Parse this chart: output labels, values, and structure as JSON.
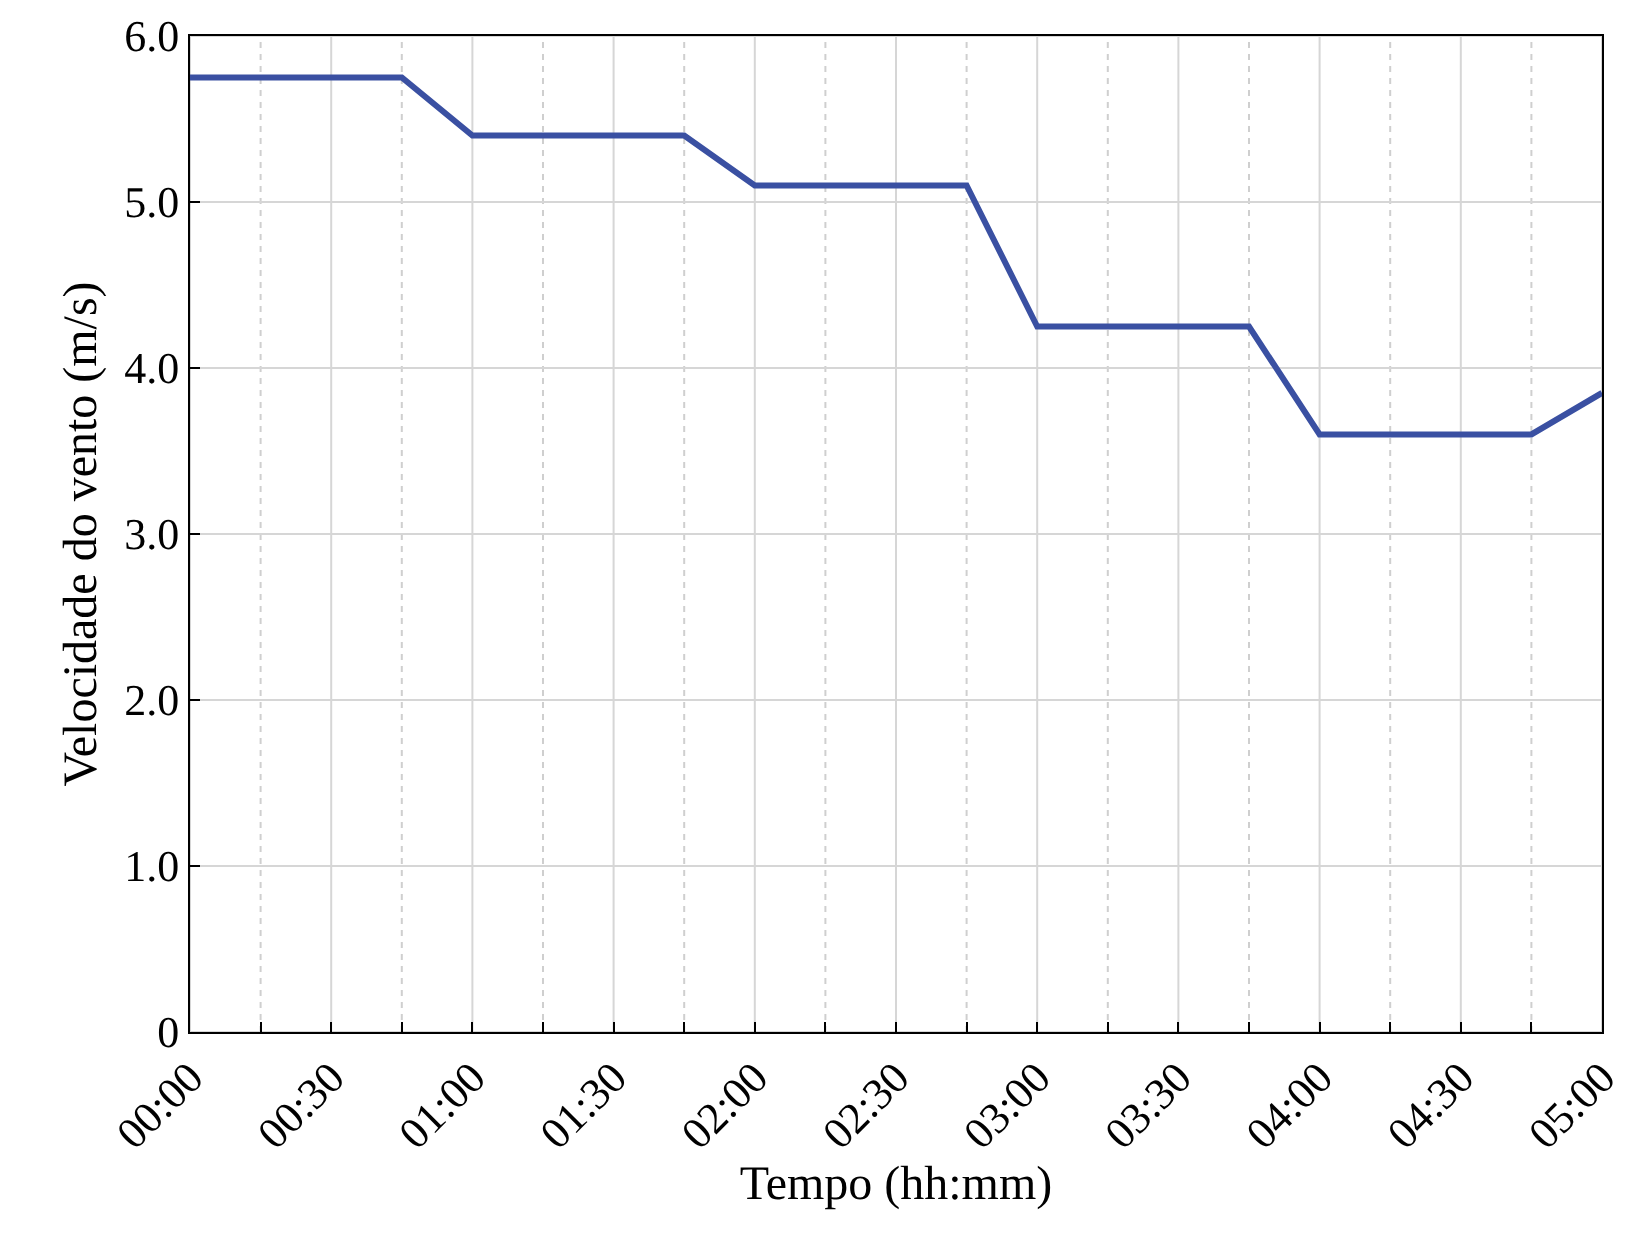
{
  "chart_data": {
    "type": "line",
    "xlabel": "Tempo (hh:mm)",
    "ylabel": "Velocidade do vento (m/s)",
    "x": [
      0,
      0.75,
      1,
      1.75,
      2,
      2.75,
      3,
      3.75,
      4,
      4.75,
      5
    ],
    "series": [
      {
        "color": "#3a50a2",
        "values": [
          5.75,
          5.75,
          5.4,
          5.4,
          5.1,
          5.1,
          4.25,
          4.25,
          3.6,
          3.6,
          3.85
        ]
      }
    ],
    "xlim": [
      0,
      5
    ],
    "xticks": [
      {
        "value": 0,
        "label": "00:00"
      },
      {
        "value": 0.25,
        "label": null
      },
      {
        "value": 0.5,
        "label": "00:30"
      },
      {
        "value": 0.75,
        "label": null
      },
      {
        "value": 1,
        "label": "01:00"
      },
      {
        "value": 1.25,
        "label": null
      },
      {
        "value": 1.5,
        "label": "01:30"
      },
      {
        "value": 1.75,
        "label": null
      },
      {
        "value": 2,
        "label": "02:00"
      },
      {
        "value": 2.25,
        "label": null
      },
      {
        "value": 2.5,
        "label": "02:30"
      },
      {
        "value": 2.75,
        "label": null
      },
      {
        "value": 3,
        "label": "03:00"
      },
      {
        "value": 3.25,
        "label": null
      },
      {
        "value": 3.5,
        "label": "03:30"
      },
      {
        "value": 3.75,
        "label": null
      },
      {
        "value": 4,
        "label": "04:00"
      },
      {
        "value": 4.25,
        "label": null
      },
      {
        "value": 4.5,
        "label": "04:30"
      },
      {
        "value": 4.75,
        "label": null
      },
      {
        "value": 5,
        "label": "05:00"
      }
    ],
    "ylim": [
      0,
      6
    ],
    "yticks": [
      0,
      {
        "value": 1,
        "label": "1.0"
      },
      {
        "value": 2,
        "label": "2.0"
      },
      {
        "value": 3,
        "label": "3.0"
      },
      {
        "value": 4,
        "label": "4.0"
      },
      {
        "value": 5,
        "label": "5.0"
      },
      {
        "value": 6,
        "label": "6.0"
      }
    ],
    "grid": true,
    "marker": "none",
    "line_style": "solid"
  }
}
